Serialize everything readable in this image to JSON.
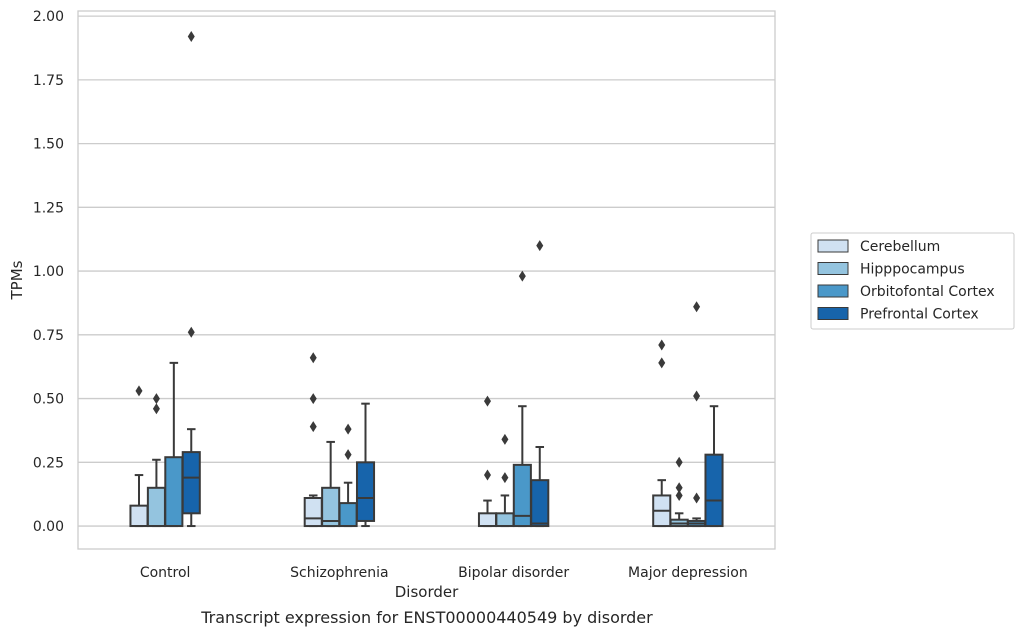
{
  "caption": "Transcript expression for ENST00000440549 by disorder",
  "chart_data": {
    "type": "boxplot",
    "xlabel": "Disorder",
    "ylabel": "TPMs",
    "ylim": [
      -0.09,
      2.02
    ],
    "yticks": [
      0.0,
      0.25,
      0.5,
      0.75,
      1.0,
      1.25,
      1.5,
      1.75,
      2.0
    ],
    "ytick_labels": [
      "0.00",
      "0.25",
      "0.50",
      "0.75",
      "1.00",
      "1.25",
      "1.50",
      "1.75",
      "2.00"
    ],
    "grid": "horizontal",
    "legend_position": "right",
    "categories": [
      "Control",
      "Schizophrenia",
      "Bipolar disorder",
      "Major depression"
    ],
    "series": [
      {
        "name": "Cerebellum",
        "color": "#d0e1f2",
        "boxes": [
          {
            "whislo": 0.0,
            "q1": 0.0,
            "med": 0.0,
            "q3": 0.08,
            "whishi": 0.2,
            "fliers": [
              0.53
            ]
          },
          {
            "whislo": 0.0,
            "q1": 0.0,
            "med": 0.03,
            "q3": 0.11,
            "whishi": 0.12,
            "fliers": [
              0.39,
              0.5,
              0.66
            ]
          },
          {
            "whislo": 0.0,
            "q1": 0.0,
            "med": 0.0,
            "q3": 0.05,
            "whishi": 0.1,
            "fliers": [
              0.2,
              0.49
            ]
          },
          {
            "whislo": 0.0,
            "q1": 0.0,
            "med": 0.06,
            "q3": 0.12,
            "whishi": 0.18,
            "fliers": [
              0.64,
              0.71
            ]
          }
        ]
      },
      {
        "name": "Hipppocampus",
        "color": "#94c4df",
        "boxes": [
          {
            "whislo": 0.0,
            "q1": 0.0,
            "med": 0.0,
            "q3": 0.15,
            "whishi": 0.26,
            "fliers": [
              0.46,
              0.5
            ]
          },
          {
            "whislo": 0.0,
            "q1": 0.0,
            "med": 0.02,
            "q3": 0.15,
            "whishi": 0.33,
            "fliers": []
          },
          {
            "whislo": 0.0,
            "q1": 0.0,
            "med": 0.0,
            "q3": 0.05,
            "whishi": 0.12,
            "fliers": [
              0.19,
              0.34
            ]
          },
          {
            "whislo": 0.0,
            "q1": 0.0,
            "med": 0.01,
            "q3": 0.025,
            "whishi": 0.05,
            "fliers": [
              0.12,
              0.15,
              0.25
            ]
          }
        ]
      },
      {
        "name": "Orbitofontal Cortex",
        "color": "#4a98c9",
        "boxes": [
          {
            "whislo": 0.0,
            "q1": 0.0,
            "med": 0.0,
            "q3": 0.27,
            "whishi": 0.64,
            "fliers": []
          },
          {
            "whislo": 0.0,
            "q1": 0.0,
            "med": 0.0,
            "q3": 0.09,
            "whishi": 0.17,
            "fliers": [
              0.28,
              0.38
            ]
          },
          {
            "whislo": 0.0,
            "q1": 0.0,
            "med": 0.04,
            "q3": 0.24,
            "whishi": 0.47,
            "fliers": [
              0.98
            ]
          },
          {
            "whislo": 0.0,
            "q1": 0.0,
            "med": 0.01,
            "q3": 0.02,
            "whishi": 0.03,
            "fliers": [
              0.11,
              0.51,
              0.86
            ]
          }
        ]
      },
      {
        "name": "Prefrontal Cortex",
        "color": "#1764ab",
        "boxes": [
          {
            "whislo": 0.0,
            "q1": 0.05,
            "med": 0.19,
            "q3": 0.29,
            "whishi": 0.38,
            "fliers": [
              0.76,
              1.92
            ]
          },
          {
            "whislo": 0.0,
            "q1": 0.02,
            "med": 0.11,
            "q3": 0.25,
            "whishi": 0.48,
            "fliers": []
          },
          {
            "whislo": 0.0,
            "q1": 0.0,
            "med": 0.01,
            "q3": 0.18,
            "whishi": 0.31,
            "fliers": [
              1.1
            ]
          },
          {
            "whislo": 0.0,
            "q1": 0.0,
            "med": 0.1,
            "q3": 0.28,
            "whishi": 0.47,
            "fliers": []
          }
        ]
      }
    ]
  }
}
